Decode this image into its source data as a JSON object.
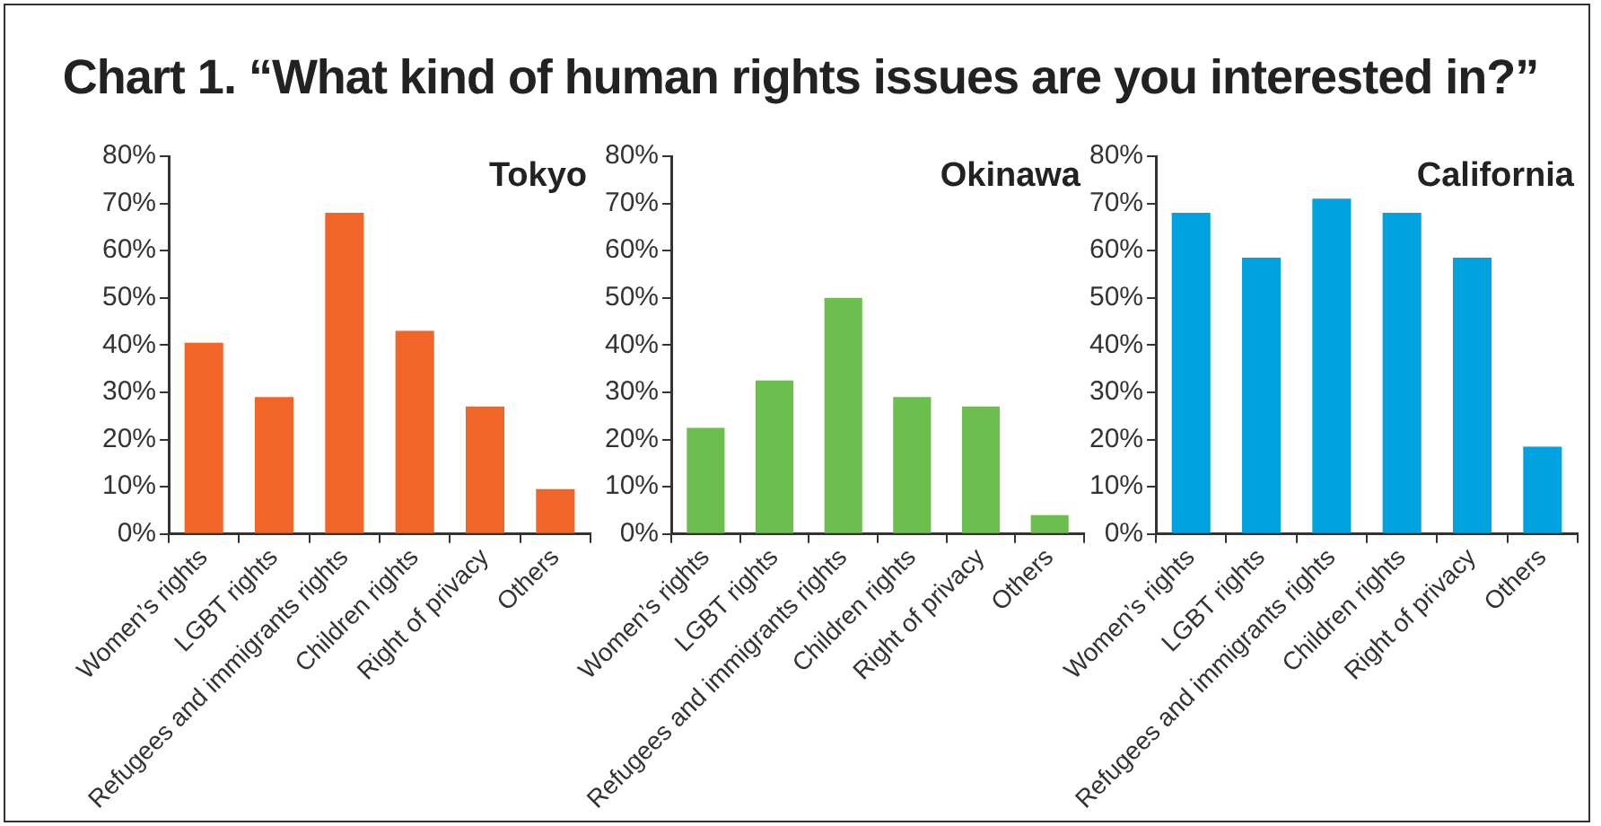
{
  "chart_data": [
    {
      "type": "bar",
      "title": "Tokyo",
      "annotations": [
        "Chart 1. “What kind of human rights issues are you interested in?”"
      ],
      "categories": [
        "Women’s rights",
        "LGBT rights",
        "Refugees and immigrants rights",
        "Children rights",
        "Right of privacy",
        "Others"
      ],
      "values": [
        40.5,
        29,
        68,
        43,
        27,
        9.5
      ],
      "color": "#f26529",
      "ylim": [
        0,
        80
      ],
      "yticks": [
        {
          "value": 0,
          "label": "0%"
        },
        {
          "value": 10,
          "label": "10%"
        },
        {
          "value": 20,
          "label": "20%"
        },
        {
          "value": 30,
          "label": "30%"
        },
        {
          "value": 40,
          "label": "40%"
        },
        {
          "value": 50,
          "label": "50%"
        },
        {
          "value": 60,
          "label": "60%"
        },
        {
          "value": 70,
          "label": "70%"
        },
        {
          "value": 80,
          "label": "80%"
        }
      ],
      "grid": false,
      "legend": false
    },
    {
      "type": "bar",
      "title": "Okinawa",
      "categories": [
        "Women’s rights",
        "LGBT rights",
        "Refugees and immigrants rights",
        "Children rights",
        "Right of privacy",
        "Others"
      ],
      "values": [
        22.5,
        32.5,
        50,
        29,
        27,
        4
      ],
      "color": "#6cbf4f",
      "ylim": [
        0,
        80
      ],
      "yticks": [
        {
          "value": 0,
          "label": "0%"
        },
        {
          "value": 10,
          "label": "10%"
        },
        {
          "value": 20,
          "label": "20%"
        },
        {
          "value": 30,
          "label": "30%"
        },
        {
          "value": 40,
          "label": "40%"
        },
        {
          "value": 50,
          "label": "50%"
        },
        {
          "value": 60,
          "label": "60%"
        },
        {
          "value": 70,
          "label": "70%"
        },
        {
          "value": 80,
          "label": "80%"
        }
      ],
      "grid": false,
      "legend": false
    },
    {
      "type": "bar",
      "title": "California",
      "categories": [
        "Women’s rights",
        "LGBT rights",
        "Refugees and immigrants rights",
        "Children rights",
        "Right of privacy",
        "Others"
      ],
      "values": [
        68,
        58.5,
        71,
        68,
        58.5,
        18.5
      ],
      "color": "#00a3e0",
      "ylim": [
        0,
        80
      ],
      "yticks": [
        {
          "value": 0,
          "label": "0%"
        },
        {
          "value": 10,
          "label": "10%"
        },
        {
          "value": 20,
          "label": "20%"
        },
        {
          "value": 30,
          "label": "30%"
        },
        {
          "value": 40,
          "label": "40%"
        },
        {
          "value": 50,
          "label": "50%"
        },
        {
          "value": 60,
          "label": "60%"
        },
        {
          "value": 70,
          "label": "70%"
        },
        {
          "value": 80,
          "label": "80%"
        }
      ],
      "grid": false,
      "legend": false
    }
  ]
}
